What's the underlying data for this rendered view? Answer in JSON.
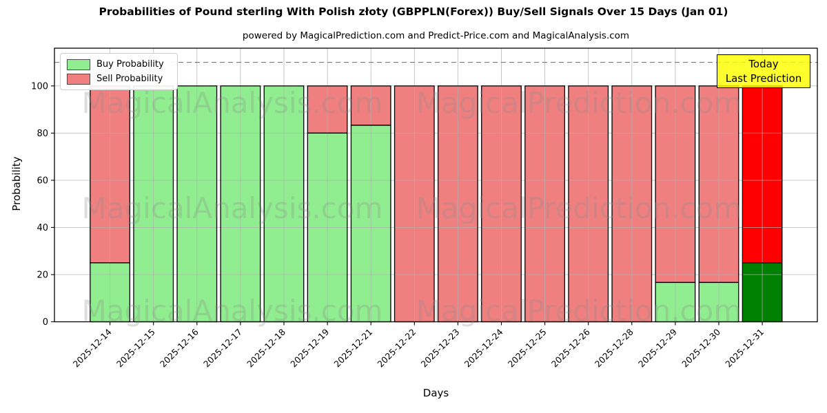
{
  "header": {
    "title": "Probabilities of Pound sterling With Polish złoty (GBPPLN(Forex)) Buy/Sell Signals Over 15 Days (Jan 01)",
    "subtitle": "powered by MagicalPrediction.com and Predict-Price.com and MagicalAnalysis.com"
  },
  "legend": {
    "items": [
      {
        "label": "Buy Probability",
        "color": "#90EE90"
      },
      {
        "label": "Sell Probability",
        "color": "#F08080"
      }
    ]
  },
  "annotation": {
    "line1": "Today",
    "line2": "Last Prediction",
    "bg_color": "#FFFF00"
  },
  "watermarks": {
    "left": "MagicalAnalysis.com",
    "right": "MagicalPrediction.com"
  },
  "axes": {
    "x_label": "Days",
    "y_label": "Probability",
    "y_ticks": [
      0,
      20,
      40,
      60,
      80,
      100
    ]
  },
  "chart_data": {
    "type": "bar",
    "stacked": true,
    "title": "Probabilities of Pound sterling With Polish złoty (GBPPLN(Forex)) Buy/Sell Signals Over 15 Days (Jan 01)",
    "xlabel": "Days",
    "ylabel": "Probability",
    "ylim": [
      0,
      116
    ],
    "grid": true,
    "legend_position": "upper left",
    "categories": [
      "2025-12-14",
      "2025-12-15",
      "2025-12-16",
      "2025-12-17",
      "2025-12-18",
      "2025-12-19",
      "2025-12-21",
      "2025-12-22",
      "2025-12-23",
      "2025-12-24",
      "2025-12-25",
      "2025-12-26",
      "2025-12-28",
      "2025-12-29",
      "2025-12-30",
      "2025-12-31"
    ],
    "series": [
      {
        "name": "Buy Probability",
        "color": "#90EE90",
        "today_color": "#008000",
        "values": [
          25,
          100,
          100,
          100,
          100,
          80,
          83.33,
          0,
          0,
          0,
          0,
          0,
          0,
          16.67,
          16.67,
          25
        ]
      },
      {
        "name": "Sell Probability",
        "color": "#F08080",
        "today_color": "#FF0000",
        "values": [
          75,
          0,
          0,
          0,
          0,
          20,
          16.67,
          100,
          100,
          100,
          100,
          100,
          100,
          83.33,
          83.33,
          75
        ]
      }
    ],
    "hline": {
      "y": 110,
      "style": "dashed",
      "color": "#777777"
    }
  }
}
